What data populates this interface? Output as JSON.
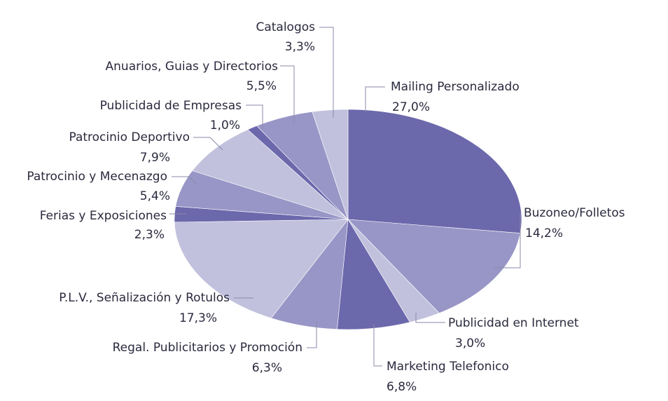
{
  "chart_data": {
    "type": "pie",
    "title": "",
    "start": "12 o'clock, clockwise",
    "slices": [
      {
        "label": "Mailing Personalizado",
        "value_label": "27,0%",
        "value": 27.0,
        "color": "#6c68ac"
      },
      {
        "label": "Buzoneo/Folletos",
        "value_label": "14,2%",
        "value": 14.2,
        "color": "#9896c6"
      },
      {
        "label": "Publicidad en Internet",
        "value_label": "3,0%",
        "value": 3.0,
        "color": "#c2c1dd"
      },
      {
        "label": "Marketing Telefonico",
        "value_label": "6,8%",
        "value": 6.8,
        "color": "#6c68ac"
      },
      {
        "label": "Regal. Publicitarios y Promoción",
        "value_label": "6,3%",
        "value": 6.3,
        "color": "#9896c6"
      },
      {
        "label": "P.L.V., Señalización y Rotulos",
        "value_label": "17,3%",
        "value": 17.3,
        "color": "#c2c1dd"
      },
      {
        "label": "Ferias y Exposiciones",
        "value_label": "2,3%",
        "value": 2.3,
        "color": "#6c68ac"
      },
      {
        "label": "Patrocinio y Mecenazgo",
        "value_label": "5,4%",
        "value": 5.4,
        "color": "#9896c6"
      },
      {
        "label": "Patrocinio Deportivo",
        "value_label": "7,9%",
        "value": 7.9,
        "color": "#c2c1dd"
      },
      {
        "label": "Publicidad de Empresas",
        "value_label": "1,0%",
        "value": 1.0,
        "color": "#6c68ac"
      },
      {
        "label": "Anuarios, Guias y Directorios",
        "value_label": "5,5%",
        "value": 5.5,
        "color": "#9896c6"
      },
      {
        "label": "Catalogos",
        "value_label": "3,3%",
        "value": 3.3,
        "color": "#c2c1dd"
      }
    ]
  }
}
